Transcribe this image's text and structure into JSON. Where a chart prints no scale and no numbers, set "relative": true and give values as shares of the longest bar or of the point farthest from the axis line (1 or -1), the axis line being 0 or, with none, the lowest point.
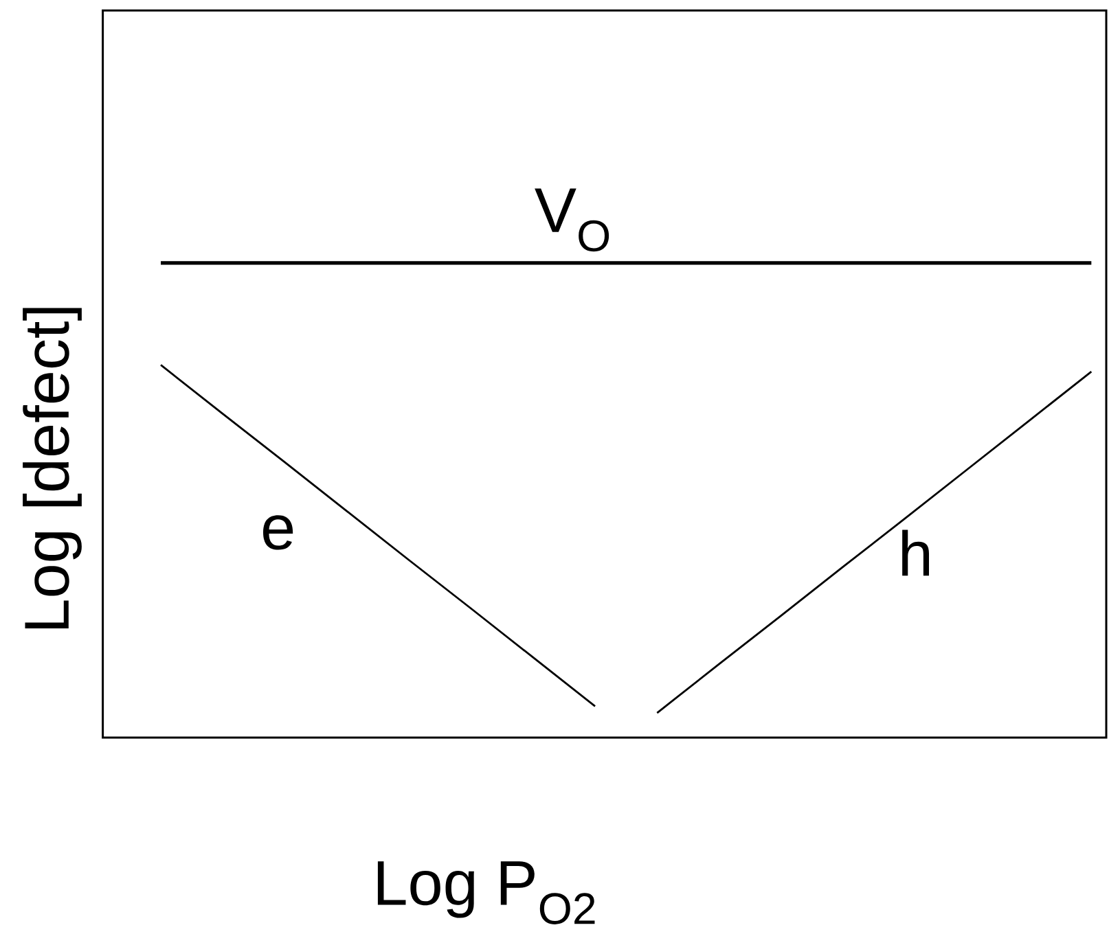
{
  "chart_data": {
    "type": "line",
    "relative": true,
    "xlabel": "Log P$_{O2}$",
    "ylabel": "Log [defect]",
    "categories": [
      null,
      null,
      null,
      null,
      null,
      null,
      null,
      null,
      null,
      null,
      null,
      null,
      null,
      null,
      null,
      null
    ],
    "series": [
      {
        "name": "V$_{O}$",
        "color": "#000000",
        "values": [
          1,
          1,
          1,
          1,
          1,
          1,
          1,
          1,
          1,
          1,
          1,
          1,
          1,
          1,
          1,
          1
        ]
      },
      {
        "name": "e",
        "color": "#000000",
        "values": [
          0.785,
          0.682,
          0.58,
          0.477,
          0.374,
          0.272,
          0.169,
          0.066,
          null,
          null,
          null,
          null,
          null,
          null,
          null,
          null
        ]
      },
      {
        "name": "h",
        "color": "#000000",
        "values": [
          null,
          null,
          null,
          null,
          null,
          null,
          null,
          null,
          0.052,
          0.155,
          0.257,
          0.36,
          0.462,
          0.565,
          0.668,
          0.771
        ]
      }
    ],
    "marker": "none",
    "line_style": "solid"
  }
}
